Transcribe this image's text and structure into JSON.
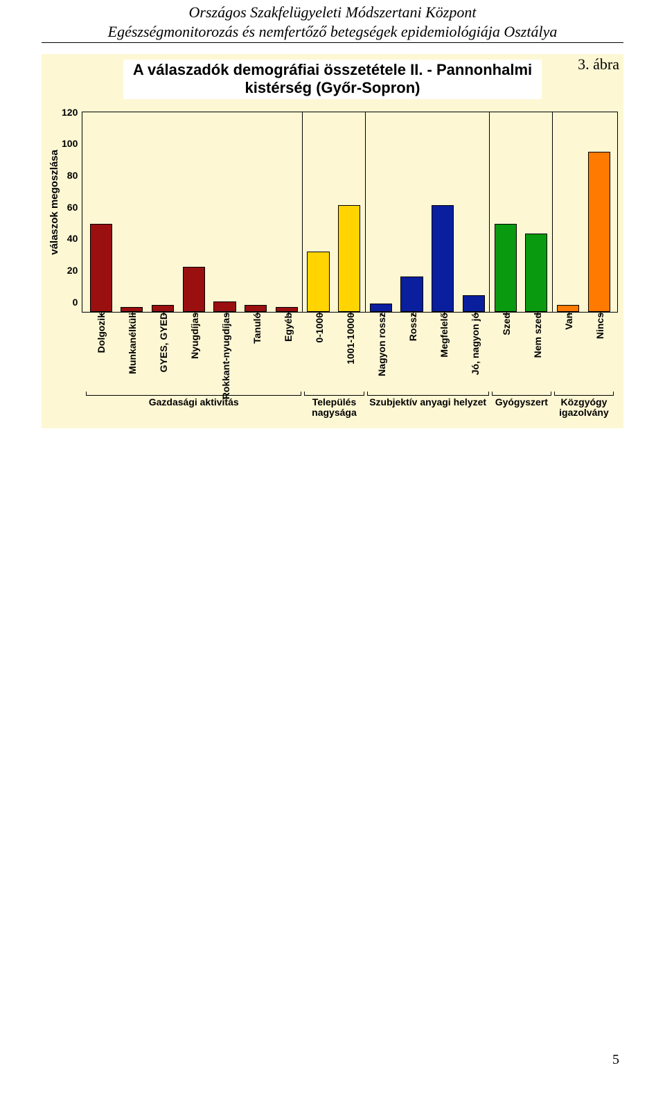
{
  "header": {
    "line1": "Országos Szakfelügyeleti Módszertani Központ",
    "line2": "Egészségmonitorozás és nemfertőző betegségek epidemiológiája Osztálya"
  },
  "figure_label": "3. ábra",
  "page_number": "5",
  "chart": {
    "type": "bar",
    "title_l1": "A válaszadók demográfiai összetétele II. - Pannonhalmi",
    "title_l2": "kistérség (Győr-Sopron)",
    "ylabel": "válaszok megoszlása",
    "ylim": [
      0,
      120
    ],
    "ytick_step": 20,
    "yticks": [
      "120",
      "100",
      "80",
      "60",
      "40",
      "20",
      "0"
    ],
    "panel_bg": "#fdf7d4",
    "border_color": "#000000",
    "label_fontsize": 14,
    "title_fontsize": 22,
    "groups": [
      {
        "label_l1": "Gazdasági aktivitás",
        "label_l2": "",
        "color": "#9a0f0f",
        "bars": [
          {
            "label": "Dolgozik",
            "value": 53
          },
          {
            "label": "Munkanélküli",
            "value": 3
          },
          {
            "label": "GYES, GYED",
            "value": 4
          },
          {
            "label": "Nyugdíjas",
            "value": 27
          },
          {
            "label": "Rokkant-nyugdíjas",
            "value": 6
          },
          {
            "label": "Tanuló",
            "value": 4
          },
          {
            "label": "Egyéb",
            "value": 3
          }
        ]
      },
      {
        "label_l1": "Település",
        "label_l2": "nagysága",
        "color": "#ffd400",
        "bars": [
          {
            "label": "0-1000",
            "value": 36
          },
          {
            "label": "1001-10000",
            "value": 64
          }
        ]
      },
      {
        "label_l1": "Szubjektív anyagi helyzet",
        "label_l2": "",
        "color": "#0a1f9e",
        "bars": [
          {
            "label": "Nagyon rossz",
            "value": 5
          },
          {
            "label": "Rossz",
            "value": 21
          },
          {
            "label": "Megfelelő",
            "value": 64
          },
          {
            "label": "Jó, nagyon jó",
            "value": 10
          }
        ]
      },
      {
        "label_l1": "Gyógyszert",
        "label_l2": "",
        "color": "#0a9a10",
        "bars": [
          {
            "label": "Szed",
            "value": 53
          },
          {
            "label": "Nem szed",
            "value": 47
          }
        ]
      },
      {
        "label_l1": "Közgyógy",
        "label_l2": "igazolvány",
        "color": "#ff7a00",
        "bars": [
          {
            "label": "Van",
            "value": 4
          },
          {
            "label": "Nincs",
            "value": 96
          }
        ]
      }
    ]
  }
}
